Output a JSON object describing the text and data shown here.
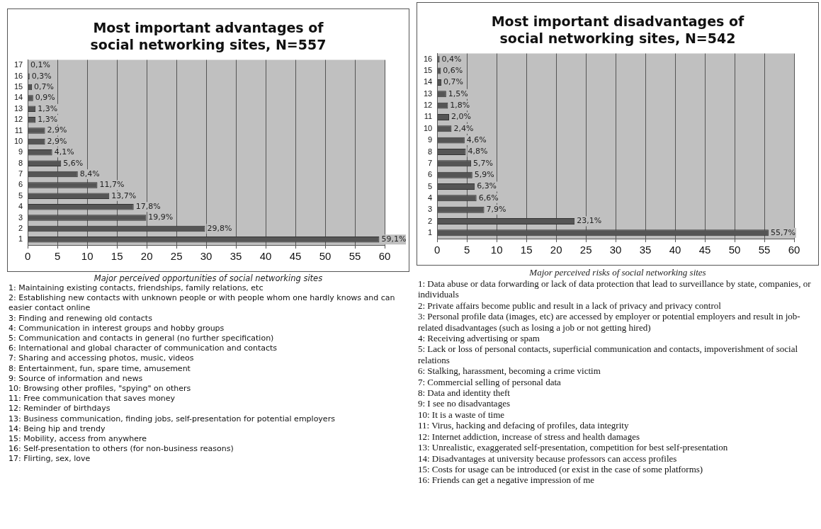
{
  "chart_data": [
    {
      "type": "bar",
      "orientation": "horizontal",
      "title": "Most important advantages of social networking sites, N=557",
      "xlabel": "Major perceived opportunities of social networking sites",
      "categories": [
        "17",
        "16",
        "15",
        "14",
        "13",
        "12",
        "11",
        "10",
        "9",
        "8",
        "7",
        "6",
        "5",
        "4",
        "3",
        "2",
        "1"
      ],
      "values": [
        0.1,
        0.3,
        0.7,
        0.9,
        1.3,
        1.3,
        2.9,
        2.9,
        4.1,
        5.6,
        8.4,
        11.7,
        13.7,
        17.8,
        19.9,
        29.8,
        59.1
      ],
      "value_labels": [
        "0,1%",
        "0,3%",
        "0,7%",
        "0,9%",
        "1,3%",
        "1,3%",
        "2,9%",
        "2,9%",
        "4,1%",
        "5,6%",
        "8,4%",
        "11,7%",
        "13,7%",
        "17,8%",
        "19,9%",
        "29,8%",
        "59,1%"
      ],
      "color": "#555555",
      "xlim": [
        0,
        60
      ],
      "xticks": [
        0,
        5,
        10,
        15,
        20,
        25,
        30,
        35,
        40,
        45,
        50,
        55,
        60
      ],
      "grid": "x",
      "legend": false,
      "annotations": [
        "1: Maintaining existing contacts, friendships, family relations, etc",
        "2: Establishing new contacts with unknown people or with people whom one hardly knows and can easier contact online",
        "3: Finding and renewing old contacts",
        "4: Communication in interest groups and hobby groups",
        "5: Communication and contacts in general (no further specification)",
        "6: International and global character of communication and contacts",
        "7: Sharing and accessing photos, music, videos",
        "8: Entertainment, fun, spare time, amusement",
        "9: Source of information and news",
        "10: Browsing other profiles, \"spying\" on others",
        "11: Free communication that saves money",
        "12: Reminder of birthdays",
        "13: Business communication, finding jobs, self-presentation for potential employers",
        "14: Being hip and trendy",
        "15: Mobility, access from anywhere",
        "16: Self-presentation to others (for non-business reasons)",
        "17: Flirting, sex, love"
      ]
    },
    {
      "type": "bar",
      "orientation": "horizontal",
      "title": "Most important disadvantages of social networking sites, N=542",
      "xlabel": "Major perceived risks of social networking sites",
      "categories": [
        "16",
        "15",
        "14",
        "13",
        "12",
        "11",
        "10",
        "9",
        "8",
        "7",
        "6",
        "5",
        "4",
        "3",
        "2",
        "1"
      ],
      "values": [
        0.4,
        0.6,
        0.7,
        1.5,
        1.8,
        2.0,
        2.4,
        4.6,
        4.8,
        5.7,
        5.9,
        6.3,
        6.6,
        7.9,
        23.1,
        55.7
      ],
      "value_labels": [
        "0,4%",
        "0,6%",
        "0,7%",
        "1,5%",
        "1,8%",
        "2,0%",
        "2,4%",
        "4,6%",
        "4,8%",
        "5,7%",
        "5,9%",
        "6,3%",
        "6,6%",
        "7,9%",
        "23,1%",
        "55,7%"
      ],
      "color": "#555555",
      "xlim": [
        0,
        60
      ],
      "xticks": [
        0,
        5,
        10,
        15,
        20,
        25,
        30,
        35,
        40,
        45,
        50,
        55,
        60
      ],
      "grid": "x",
      "legend": false,
      "annotations": [
        "1: Data abuse or data forwarding or lack of data protection that lead to surveillance by state, companies, or individuals",
        "2: Private affairs become public and result in a lack of privacy and privacy control",
        "3: Personal profile data (images, etc) are accessed by employer or potential employers and result in job-related disadvantages (such as losing a job or not getting hired)",
        "4: Receiving advertising or spam",
        "5: Lack or loss of personal contacts, superficial communication and contacts, impoverishment of social relations",
        "6: Stalking, harassment, becoming a crime victim",
        "7: Commercial selling of personal data",
        "8: Data and identity theft",
        "9: I see no disadvantages",
        "10: It is a waste of time",
        "11: Virus, hacking and defacing of profiles, data integrity",
        "12: Internet addiction, increase of stress and health damages",
        "13: Unrealistic, exaggerated self-presentation, competition for best self-presentation",
        "14: Disadvantages at university because professors can access profiles",
        "15: Costs for usage can be introduced (or exist in the case of some platforms)",
        "16: Friends can get a negative impression of me"
      ]
    }
  ]
}
